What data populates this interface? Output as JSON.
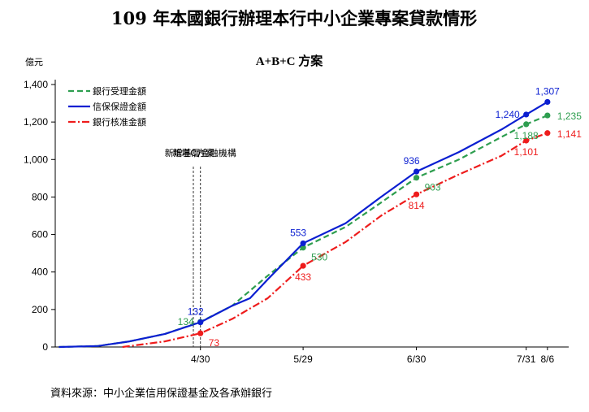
{
  "title": "109 年本國銀行辦理本行中小企業專案貸款情形",
  "source": "資料來源：中小企業信用保證基金及各承辦銀行",
  "colors": {
    "accepted": "#2e9e4f",
    "guarantee": "#0b1fd1",
    "approved": "#ee1c1c",
    "axis": "#000000",
    "annotation_line": "#333333"
  },
  "chart_data": {
    "type": "line",
    "title": "A+B+C 方案",
    "ylabel": "億元",
    "ylim": [
      0,
      1400
    ],
    "yticks": [
      0,
      200,
      400,
      600,
      800,
      1000,
      1200,
      1400
    ],
    "ytick_labels": [
      "0",
      "200",
      "400",
      "600",
      "800",
      "1,000",
      "1,200",
      "1,400"
    ],
    "x_range": [
      "2020-03-20",
      "2020-08-12"
    ],
    "xticks": [
      {
        "date": "2020-04-30",
        "label": "4/30"
      },
      {
        "date": "2020-05-29",
        "label": "5/29"
      },
      {
        "date": "2020-06-30",
        "label": "6/30"
      },
      {
        "date": "2020-07-31",
        "label": "7/31"
      },
      {
        "date": "2020-08-06",
        "label": "8/6"
      }
    ],
    "legend_position": "top-left",
    "annotations": [
      {
        "date": "2020-04-28",
        "text": "新增C方案"
      },
      {
        "date": "2020-04-30",
        "text": "新增基層金融機構"
      }
    ],
    "series": [
      {
        "key": "accepted",
        "name": "銀行受理金額",
        "style": "dashed",
        "x": [
          "2020-03-21",
          "2020-04-01",
          "2020-04-10",
          "2020-04-20",
          "2020-04-30",
          "2020-05-09",
          "2020-05-19",
          "2020-05-29",
          "2020-06-10",
          "2020-06-20",
          "2020-06-30",
          "2020-07-12",
          "2020-07-24",
          "2020-07-31",
          "2020-08-06"
        ],
        "y": [
          0,
          5,
          30,
          70,
          134,
          220,
          380,
          530,
          640,
          770,
          903,
          1000,
          1120,
          1188,
          1235
        ],
        "points": [
          {
            "date": "2020-04-30",
            "value": 134,
            "label": "134",
            "pos": "left"
          },
          {
            "date": "2020-05-29",
            "value": 530,
            "label": "530",
            "pos": "below-right"
          },
          {
            "date": "2020-06-30",
            "value": 903,
            "label": "903",
            "pos": "below-right"
          },
          {
            "date": "2020-07-31",
            "value": 1188,
            "label": "1,188",
            "pos": "below"
          },
          {
            "date": "2020-08-06",
            "value": 1235,
            "label": "1,235",
            "pos": "right"
          }
        ]
      },
      {
        "key": "guarantee",
        "name": "信保保證金額",
        "style": "solid",
        "x": [
          "2020-03-21",
          "2020-04-01",
          "2020-04-10",
          "2020-04-20",
          "2020-04-30",
          "2020-05-09",
          "2020-05-14",
          "2020-05-19",
          "2020-05-29",
          "2020-06-10",
          "2020-06-20",
          "2020-06-30",
          "2020-07-12",
          "2020-07-24",
          "2020-07-31",
          "2020-08-06"
        ],
        "y": [
          0,
          5,
          30,
          70,
          132,
          220,
          260,
          360,
          553,
          660,
          800,
          936,
          1040,
          1160,
          1240,
          1307
        ],
        "points": [
          {
            "date": "2020-04-30",
            "value": 132,
            "label": "132",
            "pos": "above-left"
          },
          {
            "date": "2020-05-29",
            "value": 553,
            "label": "553",
            "pos": "above-left"
          },
          {
            "date": "2020-06-30",
            "value": 936,
            "label": "936",
            "pos": "above-left"
          },
          {
            "date": "2020-07-31",
            "value": 1240,
            "label": "1,240",
            "pos": "left"
          },
          {
            "date": "2020-08-06",
            "value": 1307,
            "label": "1,307",
            "pos": "above"
          }
        ]
      },
      {
        "key": "approved",
        "name": "銀行核准金額",
        "style": "dashdot",
        "x": [
          "2020-04-08",
          "2020-04-20",
          "2020-04-30",
          "2020-05-09",
          "2020-05-19",
          "2020-05-29",
          "2020-06-10",
          "2020-06-20",
          "2020-06-30",
          "2020-07-12",
          "2020-07-24",
          "2020-07-31",
          "2020-08-06"
        ],
        "y": [
          0,
          30,
          73,
          150,
          260,
          433,
          560,
          700,
          814,
          920,
          1020,
          1101,
          1141
        ],
        "points": [
          {
            "date": "2020-04-30",
            "value": 73,
            "label": "73",
            "pos": "below-right"
          },
          {
            "date": "2020-05-29",
            "value": 433,
            "label": "433",
            "pos": "below"
          },
          {
            "date": "2020-06-30",
            "value": 814,
            "label": "814",
            "pos": "below"
          },
          {
            "date": "2020-07-31",
            "value": 1101,
            "label": "1,101",
            "pos": "below"
          },
          {
            "date": "2020-08-06",
            "value": 1141,
            "label": "1,141",
            "pos": "right"
          }
        ]
      }
    ]
  }
}
